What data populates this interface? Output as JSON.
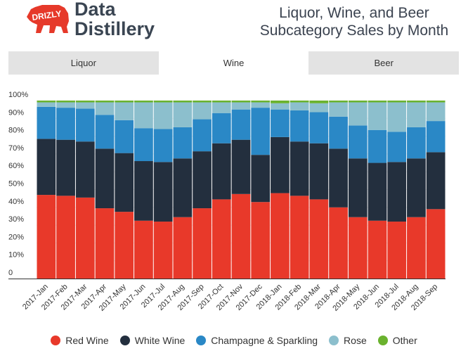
{
  "brand": {
    "badge_text": "DRIZLY",
    "name_line1": "Data",
    "name_line2": "Distillery",
    "colors": {
      "badge": "#e6392a",
      "text": "#3a4552"
    }
  },
  "header": {
    "title_line1": "Liquor, Wine, and Beer",
    "title_line2": "Subcategory Sales by Month"
  },
  "tabs": [
    {
      "label": "Liquor",
      "active": false
    },
    {
      "label": "Wine",
      "active": true
    },
    {
      "label": "Beer",
      "active": false
    }
  ],
  "chart_data": {
    "type": "bar",
    "stacked": true,
    "categories": [
      "2017-Jan",
      "2017-Feb",
      "2017-Mar",
      "2017-Apr",
      "2017-May",
      "2017-Jun",
      "2017-Jul",
      "2017-Aug",
      "2017-Sep",
      "2017-Oct",
      "2017-Nov",
      "2017-Dec",
      "2018-Jan",
      "2018-Feb",
      "2018-Mar",
      "2018-Apr",
      "2018-May",
      "2018-Jun",
      "2018-Jul",
      "2018-Aug",
      "2018-Sep"
    ],
    "series": [
      {
        "name": "Red Wine",
        "color": "#e8392a",
        "values": [
          47,
          46.5,
          45.5,
          39.5,
          37.5,
          32.5,
          32,
          34.5,
          39.5,
          44.5,
          47.5,
          43,
          48,
          46.5,
          44.5,
          40,
          34.5,
          32.5,
          32,
          34.5,
          39
        ]
      },
      {
        "name": "White Wine",
        "color": "#232f3e",
        "values": [
          31.5,
          31.5,
          31.5,
          33.5,
          33,
          33.5,
          33.5,
          33,
          32,
          31.5,
          30.5,
          26.5,
          31.5,
          30.5,
          31.5,
          33,
          33,
          32.5,
          33.5,
          33,
          32
        ]
      },
      {
        "name": "Champagne & Sparkling",
        "color": "#2a88c6",
        "values": [
          18,
          18,
          18.5,
          19,
          18.5,
          18.5,
          18.5,
          17.5,
          18,
          17,
          17,
          26.5,
          15.5,
          17.5,
          17.5,
          18,
          18.5,
          18.5,
          17,
          17.5,
          17.5
        ]
      },
      {
        "name": "Rose",
        "color": "#8cbfcd",
        "values": [
          2.5,
          3,
          3.5,
          7,
          10,
          14.5,
          15,
          14,
          9.5,
          6,
          4,
          3,
          3.5,
          4.5,
          5,
          8,
          13,
          15.5,
          16.5,
          14,
          10.5
        ]
      },
      {
        "name": "Other",
        "color": "#6ab22e",
        "values": [
          1,
          1,
          1,
          1,
          1,
          1,
          1,
          1,
          1,
          1,
          1,
          1,
          1.5,
          1,
          1.5,
          1,
          1,
          1,
          1,
          1,
          1
        ]
      }
    ],
    "yticks": [
      "0",
      "10%",
      "20%",
      "30%",
      "40%",
      "50%",
      "60%",
      "70%",
      "80%",
      "90%",
      "100%"
    ],
    "ylim": [
      0,
      100
    ],
    "title": "Liquor, Wine, and Beer Subcategory Sales by Month",
    "xlabel": "",
    "ylabel": "",
    "legend_position": "bottom"
  }
}
